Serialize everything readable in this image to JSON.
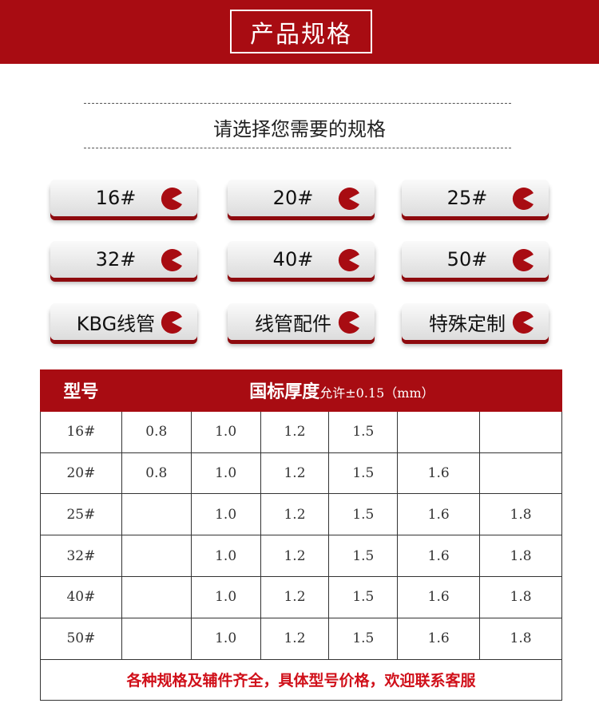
{
  "header": {
    "title": "产品规格"
  },
  "subtitle": "请选择您需要的规格",
  "buttons": [
    {
      "label": "16#"
    },
    {
      "label": "20#"
    },
    {
      "label": "25#"
    },
    {
      "label": "32#"
    },
    {
      "label": "40#"
    },
    {
      "label": "50#"
    },
    {
      "label": "KBG线管"
    },
    {
      "label": "线管配件"
    },
    {
      "label": "特殊定制"
    }
  ],
  "accent": "#a80c12",
  "table": {
    "col_model": "型号",
    "col_thickness": "国标厚度",
    "col_tolerance": "允许±0.15（mm）",
    "rows": [
      {
        "model": "16#",
        "values": [
          "0.8",
          "1.0",
          "1.2",
          "1.5",
          "",
          ""
        ]
      },
      {
        "model": "20#",
        "values": [
          "0.8",
          "1.0",
          "1.2",
          "1.5",
          "1.6",
          ""
        ]
      },
      {
        "model": "25#",
        "values": [
          "",
          "1.0",
          "1.2",
          "1.5",
          "1.6",
          "1.8"
        ]
      },
      {
        "model": "32#",
        "values": [
          "",
          "1.0",
          "1.2",
          "1.5",
          "1.6",
          "1.8"
        ]
      },
      {
        "model": "40#",
        "values": [
          "",
          "1.0",
          "1.2",
          "1.5",
          "1.6",
          "1.8"
        ]
      },
      {
        "model": "50#",
        "values": [
          "",
          "1.0",
          "1.2",
          "1.5",
          "1.6",
          "1.8"
        ]
      }
    ],
    "footer": "各种规格及辅件齐全，具体型号价格，欢迎联系客服"
  }
}
